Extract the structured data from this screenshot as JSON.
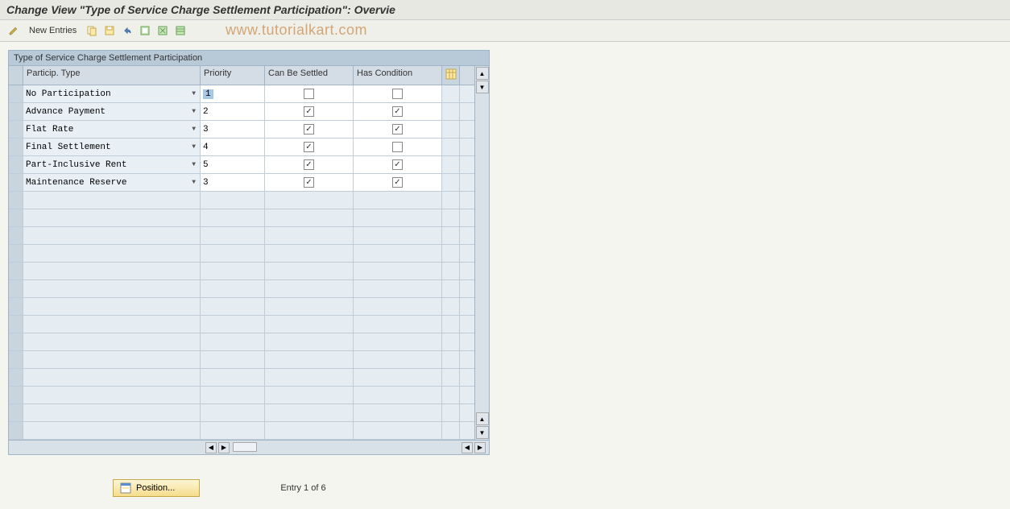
{
  "title": "Change View \"Type of Service Charge Settlement Participation\": Overvie",
  "toolbar": {
    "new_entries_label": "New Entries"
  },
  "watermark": "www.tutorialkart.com",
  "panel": {
    "header": "Type of Service Charge Settlement Participation",
    "columns": {
      "particip_type": "Particip. Type",
      "priority": "Priority",
      "can_be_settled": "Can Be Settled",
      "has_condition": "Has Condition"
    },
    "rows": [
      {
        "type": "No Participation",
        "priority": "1",
        "priority_highlight": true,
        "settled": false,
        "condition": false
      },
      {
        "type": "Advance Payment",
        "priority": "2",
        "priority_highlight": false,
        "settled": true,
        "condition": true
      },
      {
        "type": "Flat Rate",
        "priority": "3",
        "priority_highlight": false,
        "settled": true,
        "condition": true
      },
      {
        "type": "Final Settlement",
        "priority": "4",
        "priority_highlight": false,
        "settled": true,
        "condition": false
      },
      {
        "type": "Part-Inclusive Rent",
        "priority": "5",
        "priority_highlight": false,
        "settled": true,
        "condition": true
      },
      {
        "type": "Maintenance Reserve",
        "priority": "3",
        "priority_highlight": false,
        "settled": true,
        "condition": true
      }
    ],
    "empty_rows": 14
  },
  "footer": {
    "position_label": "Position...",
    "entry_text": "Entry 1 of 6"
  },
  "colors": {
    "background": "#f5f5f0",
    "panel_border": "#9fb5c7",
    "header_bg": "#b8c9d8",
    "row_bg": "#ffffff",
    "alt_bg": "#e8f0f5",
    "highlight": "#a8c8e8",
    "watermark": "#d4a574",
    "button_grad_top": "#fef5d8",
    "button_grad_bottom": "#f5dd8a"
  }
}
